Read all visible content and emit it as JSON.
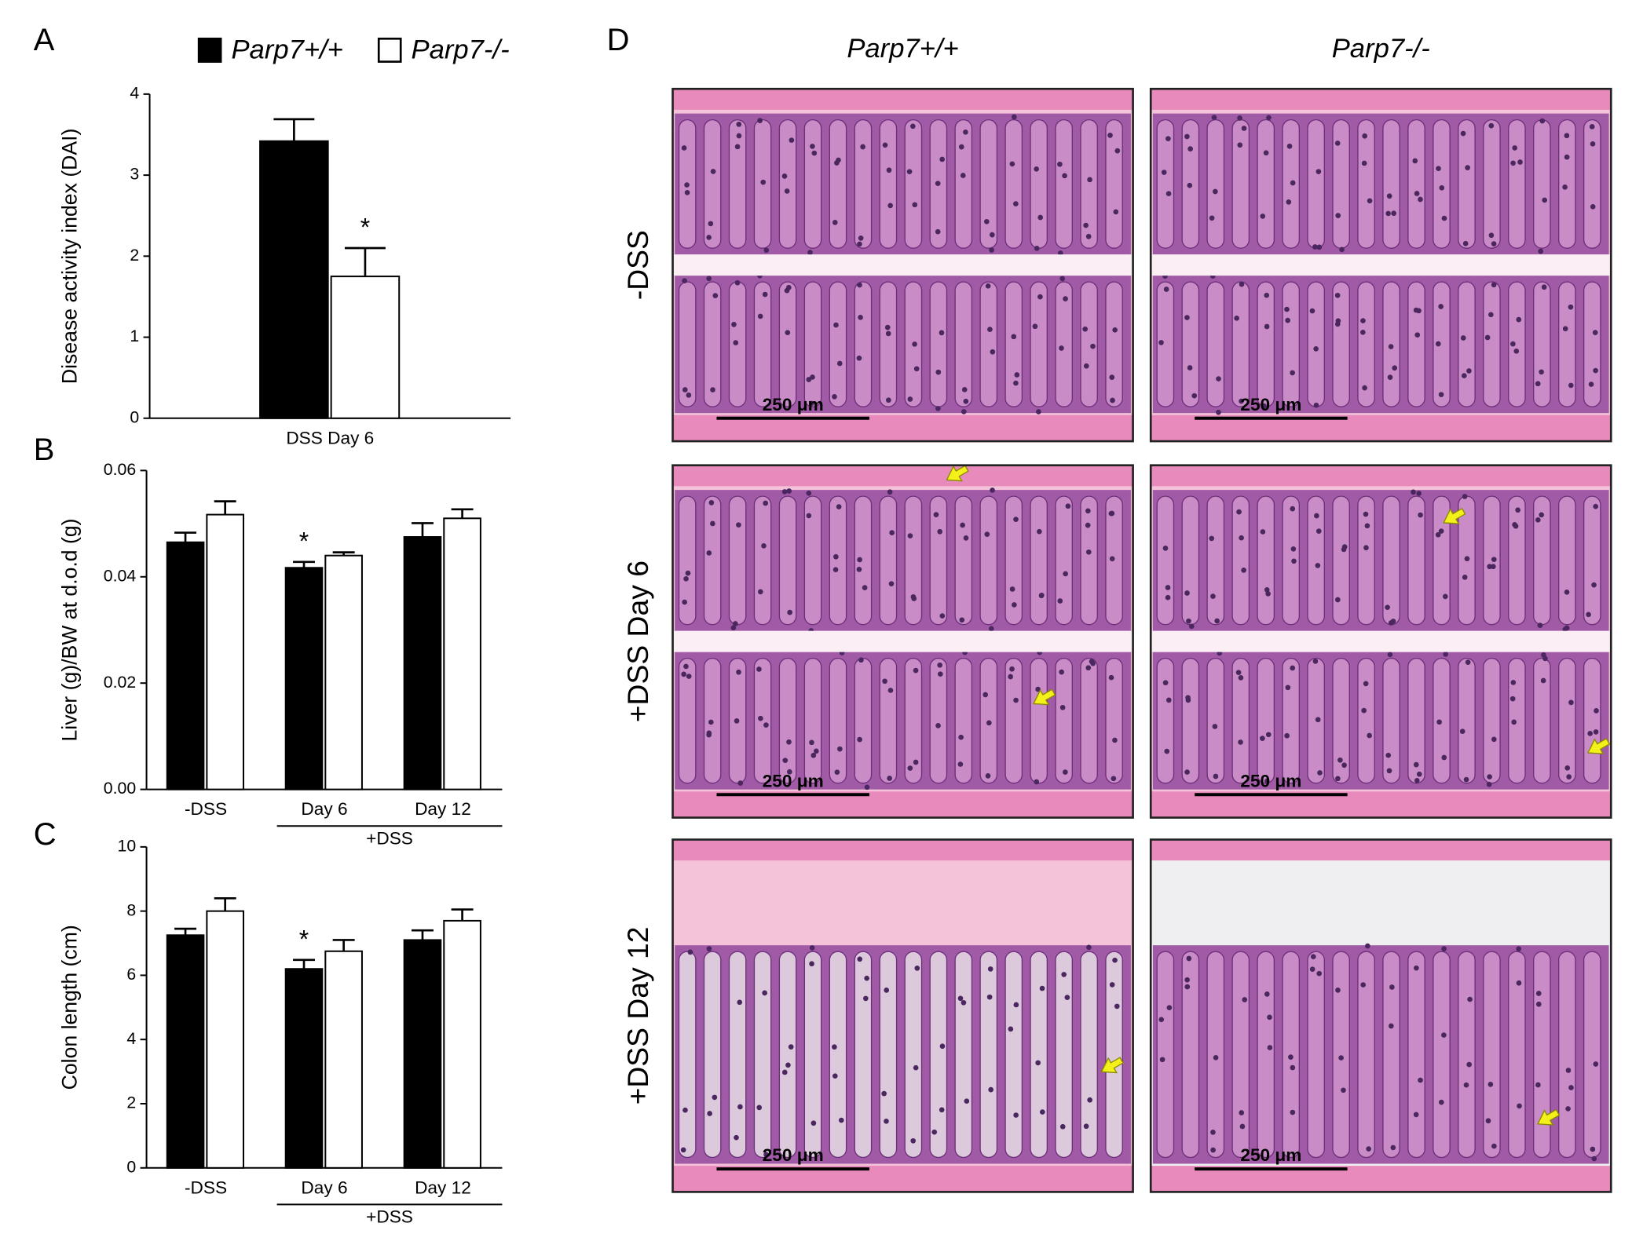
{
  "chart_data": [
    {
      "type": "bar",
      "panel": "A",
      "ylabel": "Disease activity index (DAI)",
      "legend": true,
      "categories": [
        "DSS Day 6"
      ],
      "series": [
        {
          "name": "Parp7+/+",
          "color": "#000000",
          "values": [
            3.42
          ],
          "errors": [
            0.27
          ]
        },
        {
          "name": "Parp7-/-",
          "color": "#ffffff",
          "values": [
            1.75
          ],
          "errors": [
            0.35
          ],
          "annotations": [
            "*"
          ]
        }
      ],
      "ylim": [
        0,
        4
      ],
      "yticks": [
        0,
        1,
        2,
        3,
        4
      ]
    },
    {
      "type": "bar",
      "panel": "B",
      "ylabel": "Liver (g)/BW at d.o.d (g)",
      "group_label": "+DSS",
      "categories": [
        "-DSS",
        "Day 6",
        "Day 12"
      ],
      "series": [
        {
          "color": "#000000",
          "values": [
            0.0465,
            0.0417,
            0.0475
          ],
          "errors": [
            0.0018,
            0.0011,
            0.0026
          ],
          "annotations": [
            null,
            "*",
            null
          ]
        },
        {
          "color": "#ffffff",
          "values": [
            0.0517,
            0.044,
            0.051
          ],
          "errors": [
            0.0025,
            0.0006,
            0.0017
          ]
        }
      ],
      "ylim": [
        0,
        0.06
      ],
      "yticks": [
        {
          "value": 0,
          "label": "0.00"
        },
        0.02,
        0.04,
        0.06
      ]
    },
    {
      "type": "bar",
      "panel": "C",
      "ylabel": "Colon length (cm)",
      "group_label": "+DSS",
      "categories": [
        "-DSS",
        "Day 6",
        "Day 12"
      ],
      "series": [
        {
          "color": "#000000",
          "values": [
            7.25,
            6.2,
            7.1
          ],
          "errors": [
            0.2,
            0.28,
            0.3
          ],
          "annotations": [
            null,
            "*",
            null
          ]
        },
        {
          "color": "#ffffff",
          "values": [
            8.0,
            6.75,
            7.7
          ],
          "errors": [
            0.4,
            0.35,
            0.35
          ]
        }
      ],
      "ylim": [
        0,
        10
      ],
      "yticks": [
        0,
        2,
        4,
        6,
        8,
        10
      ]
    }
  ],
  "panel_d": {
    "panel": "D",
    "columns": [
      "Parp7+/+",
      "Parp7-/-"
    ],
    "rows": [
      "-DSS",
      "+DSS Day 6",
      "+DSS Day 12"
    ],
    "scale_bars": [
      "250 μm",
      "250 μm",
      "250 μm",
      "250 μm",
      "250 μm",
      "250 μm"
    ]
  }
}
